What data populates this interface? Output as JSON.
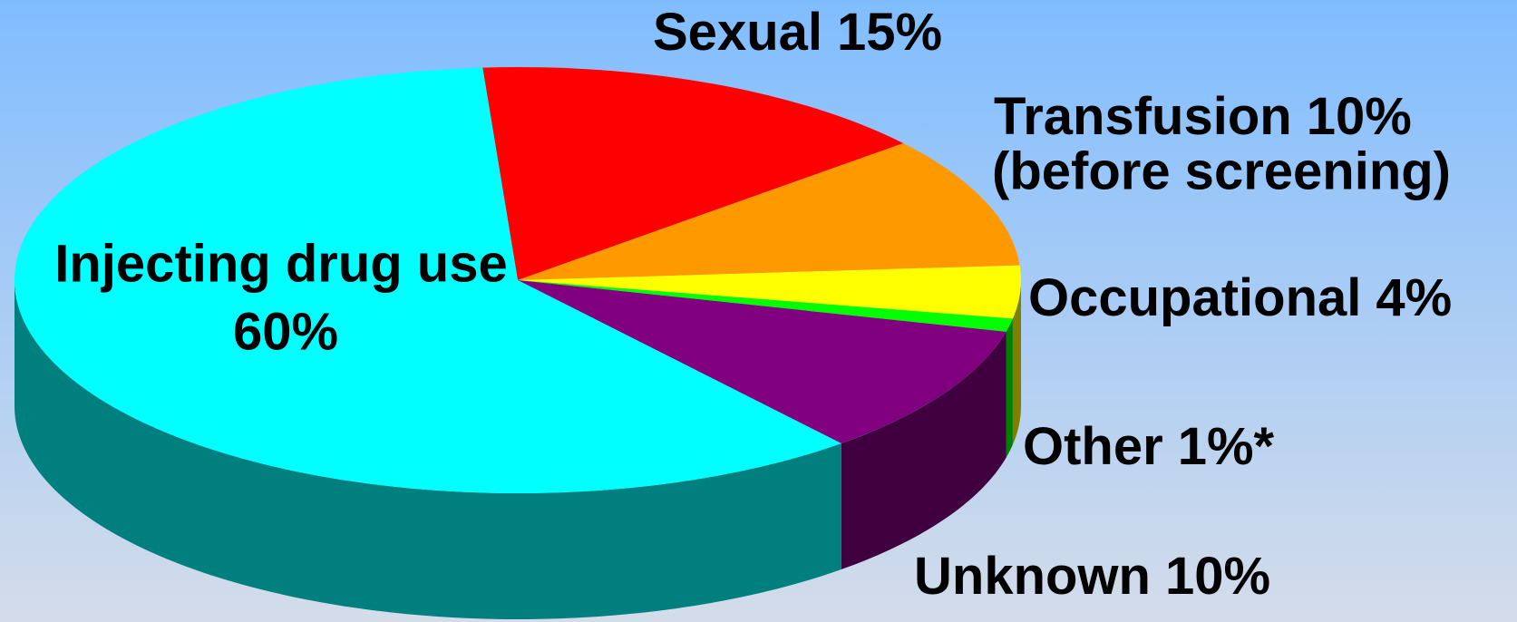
{
  "chart_data": {
    "type": "pie",
    "categories": [
      "Sexual",
      "Transfusion",
      "Occupational",
      "Other",
      "Unknown",
      "Injecting drug use"
    ],
    "values": [
      15,
      10,
      4,
      1,
      10,
      60
    ],
    "value_labels": [
      "15%",
      "10%",
      "4%",
      "1%*",
      "10%",
      "60%"
    ],
    "colors": [
      "#ff0000",
      "#ff9900",
      "#ffff00",
      "#00ff00",
      "#800080",
      "#00ffff"
    ],
    "annotations": [
      "(before screening)"
    ],
    "three_d": true
  }
}
